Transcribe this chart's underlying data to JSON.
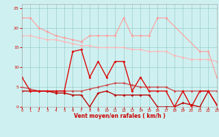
{
  "x": [
    0,
    1,
    2,
    3,
    4,
    5,
    6,
    7,
    8,
    9,
    10,
    11,
    12,
    13,
    14,
    15,
    16,
    17,
    18,
    19,
    20,
    21,
    22,
    23
  ],
  "line1": [
    22.5,
    22.5,
    20,
    19,
    18,
    17.5,
    17,
    16.5,
    18,
    18,
    18,
    18,
    22.5,
    18,
    18,
    18,
    22.5,
    22.5,
    null,
    null,
    null,
    14,
    14,
    7.5
  ],
  "line2": [
    18,
    18,
    17.5,
    17,
    17,
    16.5,
    16,
    15.5,
    15.5,
    15,
    15,
    15,
    15,
    14.5,
    14.5,
    14,
    14,
    14,
    13,
    12.5,
    12,
    12,
    12,
    11.5
  ],
  "line4": [
    7.5,
    4,
    4,
    4,
    4,
    4,
    14,
    14.5,
    7.5,
    11.5,
    7.5,
    11.5,
    11.5,
    4,
    7.5,
    4,
    4,
    4,
    0,
    4,
    0,
    4,
    4,
    0.5
  ],
  "line5": [
    5,
    4.5,
    4,
    4,
    4,
    4,
    4,
    4,
    4.5,
    5,
    5.5,
    6,
    6,
    5.5,
    5,
    5,
    5,
    5,
    4,
    4,
    4,
    4,
    4,
    4
  ],
  "line6": [
    4,
    4,
    4,
    4,
    3.5,
    3.5,
    3,
    3,
    0,
    3.5,
    4,
    3,
    3,
    3,
    3,
    3,
    0,
    0,
    0,
    1,
    0.5,
    0,
    4,
    0.5
  ],
  "background_color": "#cff0f0",
  "grid_color": "#99cccc",
  "line1_color": "#ff9999",
  "line2_color": "#ffb3b3",
  "line4_color": "#dd0000",
  "line5_color": "#cc4444",
  "line6_color": "#bb0000",
  "xlabel": "Vent moyen/en rafales ( km/h )",
  "ylim": [
    0,
    26
  ],
  "xlim": [
    0,
    23
  ],
  "yticks": [
    0,
    5,
    10,
    15,
    20,
    25
  ]
}
